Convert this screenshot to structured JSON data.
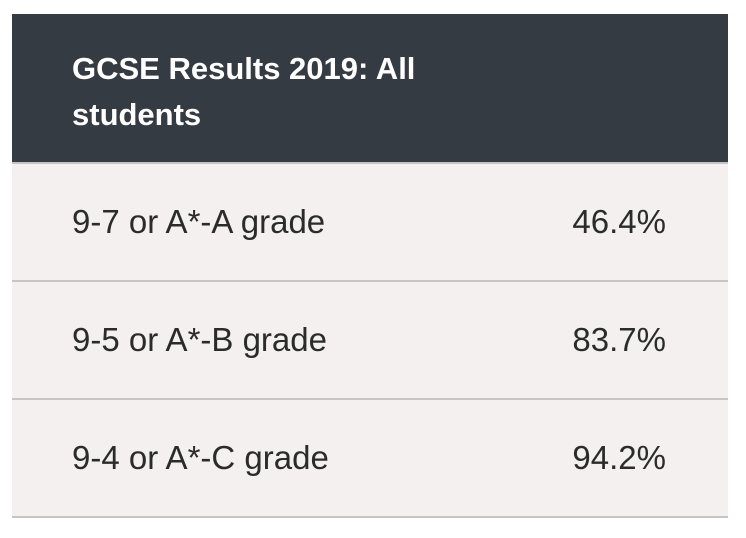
{
  "table": {
    "title": "GCSE Results 2019: All students",
    "rows": [
      {
        "label": "9-7 or A*-A grade",
        "value": "46.4%"
      },
      {
        "label": "9-5 or A*-B grade",
        "value": "83.7%"
      },
      {
        "label": "9-4 or A*-C grade",
        "value": "94.2%"
      }
    ]
  },
  "colors": {
    "header_bg": "#353b42",
    "row_bg": "#f3f0ef",
    "divider": "#c7c5c4",
    "text": "#2b2b2b"
  }
}
